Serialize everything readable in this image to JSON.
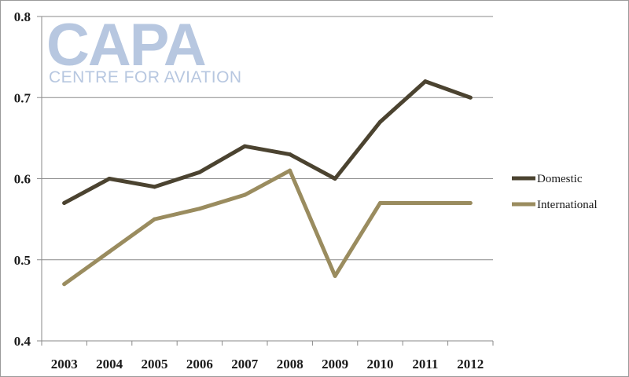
{
  "logo": {
    "name": "CAPA",
    "tagline": "CENTRE FOR AVIATION",
    "color": "#b7c7e0"
  },
  "chart_data": {
    "type": "line",
    "title": "",
    "xlabel": "",
    "ylabel": "",
    "categories": [
      "2003",
      "2004",
      "2005",
      "2006",
      "2007",
      "2008",
      "2009",
      "2010",
      "2011",
      "2012"
    ],
    "ylim": [
      0.4,
      0.8
    ],
    "yticks": [
      "0.4",
      "0.5",
      "0.6",
      "0.7",
      "0.8"
    ],
    "grid": true,
    "legend_position": "right",
    "series": [
      {
        "name": "Domestic",
        "color": "#4b4330",
        "values": [
          0.57,
          0.6,
          0.59,
          0.608,
          0.64,
          0.63,
          0.6,
          0.67,
          0.72,
          0.7
        ]
      },
      {
        "name": "International",
        "color": "#9a8c5f",
        "values": [
          0.47,
          0.51,
          0.55,
          0.563,
          0.58,
          0.61,
          0.48,
          0.57,
          0.57,
          0.57
        ]
      }
    ]
  }
}
